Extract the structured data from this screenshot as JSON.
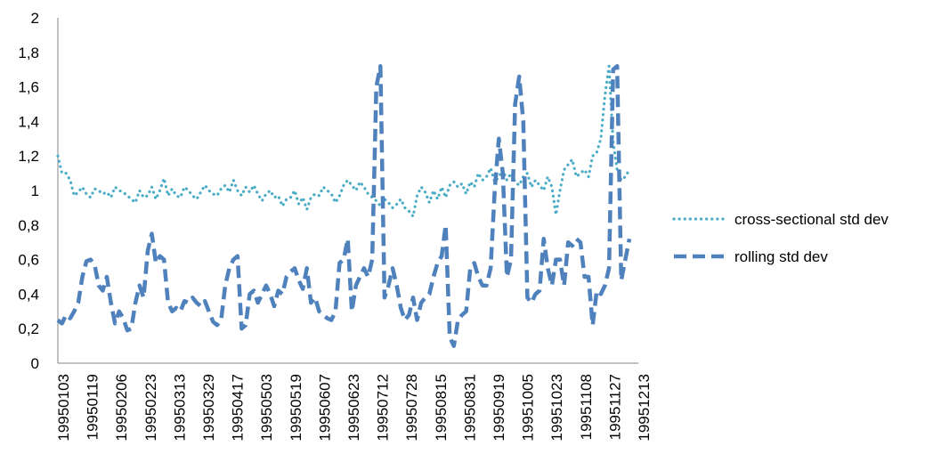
{
  "chart_data": {
    "type": "line",
    "title": "",
    "xlabel": "",
    "ylabel": "",
    "ylim": [
      0,
      2
    ],
    "y_ticks": [
      "0",
      "0,2",
      "0,4",
      "0,6",
      "0,8",
      "1",
      "1,2",
      "1,4",
      "1,6",
      "1,8",
      "2"
    ],
    "x_tick_labels": [
      "19950103",
      "19950119",
      "19950206",
      "19950223",
      "19950313",
      "19950329",
      "19950417",
      "19950503",
      "19950519",
      "19950607",
      "19950623",
      "19950712",
      "19950728",
      "19950815",
      "19950831",
      "19950919",
      "19951005",
      "19951023",
      "19951108",
      "19951127",
      "19951213"
    ],
    "grid": false,
    "legend_position": "right",
    "series": [
      {
        "name": "cross-sectional std dev",
        "color": "#4bacc6",
        "style": "dotted",
        "values": [
          1.2,
          1.1,
          1.1,
          1.06,
          0.97,
          0.99,
          1.02,
          0.98,
          0.96,
          1.01,
          1.0,
          0.98,
          0.99,
          0.96,
          1.02,
          1.0,
          0.99,
          0.97,
          0.95,
          0.93,
          1.0,
          0.96,
          0.97,
          1.02,
          0.95,
          1.0,
          1.07,
          0.97,
          1.01,
          0.97,
          0.96,
          1.02,
          1.0,
          0.97,
          0.95,
          0.99,
          1.03,
          1.0,
          0.98,
          0.97,
          1.01,
          1.03,
          0.99,
          1.06,
          1.0,
          0.97,
          1.02,
          0.99,
          1.03,
          0.98,
          0.94,
          0.98,
          1.0,
          0.96,
          0.97,
          0.91,
          0.95,
          0.96,
          1.0,
          0.92,
          0.96,
          0.89,
          0.96,
          0.98,
          0.97,
          1.02,
          1.0,
          0.98,
          0.93,
          0.97,
          1.03,
          1.06,
          1.03,
          1.0,
          1.05,
          1.02,
          0.98,
          0.96,
          0.94,
          0.91,
          0.95,
          0.93,
          0.9,
          0.92,
          0.95,
          0.9,
          0.88,
          0.85,
          0.97,
          1.02,
          0.99,
          0.93,
          1.0,
          0.95,
          1.02,
          0.96,
          1.03,
          1.05,
          1.02,
          1.04,
          0.98,
          1.05,
          1.02,
          1.1,
          1.06,
          1.08,
          1.13,
          1.05,
          1.08,
          1.12,
          1.06,
          1.1,
          1.05,
          1.03,
          1.08,
          1.1,
          1.02,
          1.06,
          1.03,
          1.0,
          1.08,
          1.02,
          0.86,
          1.0,
          1.12,
          1.15,
          1.18,
          1.08,
          1.1,
          1.12,
          1.08,
          1.2,
          1.22,
          1.3,
          1.55,
          1.72,
          1.28,
          1.12,
          1.06,
          1.08,
          1.12
        ]
      },
      {
        "name": "rolling std dev",
        "color": "#4f81bd",
        "style": "dashed",
        "values": [
          0.25,
          0.23,
          0.28,
          0.26,
          0.3,
          0.35,
          0.5,
          0.59,
          0.6,
          0.57,
          0.45,
          0.42,
          0.5,
          0.35,
          0.23,
          0.3,
          0.26,
          0.19,
          0.2,
          0.35,
          0.45,
          0.38,
          0.65,
          0.75,
          0.58,
          0.62,
          0.6,
          0.35,
          0.3,
          0.32,
          0.3,
          0.36,
          0.35,
          0.38,
          0.35,
          0.33,
          0.36,
          0.3,
          0.24,
          0.22,
          0.25,
          0.45,
          0.55,
          0.6,
          0.62,
          0.2,
          0.22,
          0.4,
          0.42,
          0.35,
          0.4,
          0.45,
          0.4,
          0.33,
          0.42,
          0.4,
          0.5,
          0.53,
          0.55,
          0.48,
          0.43,
          0.55,
          0.35,
          0.38,
          0.3,
          0.28,
          0.26,
          0.25,
          0.3,
          0.58,
          0.6,
          0.72,
          0.3,
          0.45,
          0.5,
          0.55,
          0.5,
          0.6,
          1.6,
          1.72,
          0.38,
          0.45,
          0.55,
          0.45,
          0.32,
          0.25,
          0.28,
          0.38,
          0.25,
          0.35,
          0.38,
          0.4,
          0.5,
          0.58,
          0.62,
          0.8,
          0.15,
          0.1,
          0.25,
          0.28,
          0.3,
          0.55,
          0.58,
          0.5,
          0.45,
          0.45,
          0.55,
          1.0,
          1.3,
          1.1,
          0.5,
          0.6,
          1.5,
          1.66,
          1.4,
          0.38,
          0.35,
          0.4,
          0.42,
          0.72,
          0.55,
          0.45,
          0.6,
          0.6,
          0.45,
          0.7,
          0.68,
          0.72,
          0.7,
          0.5,
          0.5,
          0.22,
          0.42,
          0.4,
          0.45,
          0.55,
          1.7,
          1.72,
          0.48,
          0.6,
          0.72
        ]
      }
    ]
  }
}
